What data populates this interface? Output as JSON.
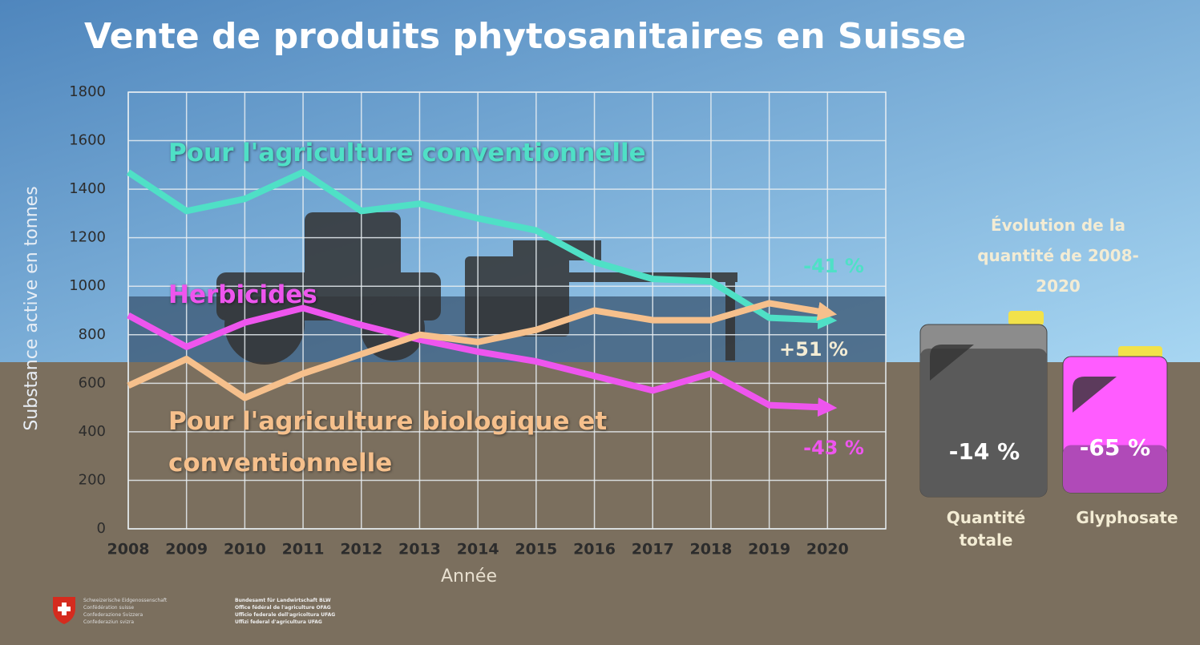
{
  "chart_data": {
    "type": "line",
    "title": "Vente de produits phytosanitaires en Suisse",
    "x_label": "Année",
    "y_label": "Substance active en tonnes",
    "x": [
      2008,
      2009,
      2010,
      2011,
      2012,
      2013,
      2014,
      2015,
      2016,
      2017,
      2018,
      2019,
      2020
    ],
    "xlim": [
      2008,
      2021
    ],
    "xticks": [
      2008,
      2009,
      2010,
      2011,
      2012,
      2013,
      2014,
      2015,
      2016,
      2017,
      2018,
      2019,
      2020
    ],
    "ylim": [
      0,
      1800
    ],
    "yticks": [
      0,
      200,
      400,
      600,
      800,
      1000,
      1200,
      1400,
      1600,
      1800
    ],
    "grid": true,
    "series": [
      {
        "name": "Pour l'agriculture conventionnelle",
        "color": "#4fe0c6",
        "values": [
          1470,
          1310,
          1360,
          1470,
          1310,
          1340,
          1280,
          1230,
          1100,
          1030,
          1020,
          870,
          860
        ],
        "change": -41,
        "change_label": "-41 %"
      },
      {
        "name": "Herbicides",
        "color": "#ee55ee",
        "values": [
          880,
          750,
          850,
          910,
          840,
          780,
          730,
          690,
          630,
          570,
          640,
          510,
          500
        ],
        "change": -43,
        "change_label": "-43 %"
      },
      {
        "name": "Pour l'agriculture biologique et conventionnelle",
        "color": "#f6c08c",
        "values": [
          590,
          700,
          540,
          640,
          720,
          800,
          770,
          820,
          900,
          860,
          860,
          930,
          890
        ],
        "change": 51,
        "change_label": "+51 %"
      }
    ],
    "side_panel": {
      "title": "Évolution de la quantité de 2008-2020",
      "items": [
        {
          "name": "Quantité totale",
          "change": -14,
          "change_label": "-14 %",
          "color": "#5a5a5a"
        },
        {
          "name": "Glyphosate",
          "change": -65,
          "change_label": "-65 %",
          "color": "#b04ab8"
        }
      ]
    }
  },
  "footer": {
    "confederation": [
      "Schweizerische Eidgenossenschaft",
      "Confédération suisse",
      "Confederazione Svizzera",
      "Confederaziun svizra"
    ],
    "office": [
      "Bundesamt für Landwirtschaft BLW",
      "Office fédéral de l'agriculture OFAG",
      "Ufficio federale dell'agricoltura UFAG",
      "Uffizi federal d'agricultura UFAG"
    ]
  }
}
